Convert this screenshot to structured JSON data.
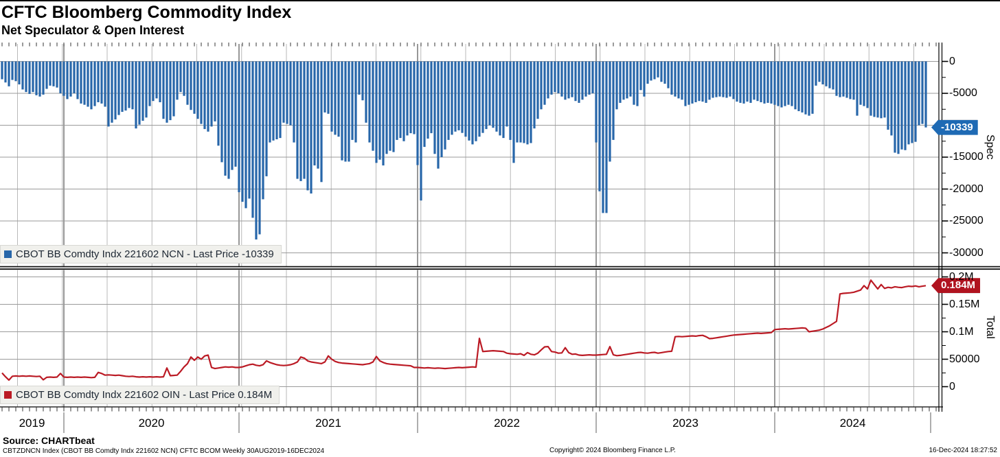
{
  "header": {
    "title": "CFTC Bloomberg Commodity Index",
    "subtitle": "Net Speculator & Open Interest"
  },
  "colors": {
    "bar": "#2766a9",
    "bar_badge": "#1e6ab4",
    "line": "#bb1a24",
    "line_badge": "#b0131f",
    "grid_h": "#9a9a9a",
    "grid_quarter": "#b8b8b8",
    "grid_year": "#6b6b6b",
    "axis": "#000000",
    "legend_bg": "#f0f0ec"
  },
  "top_panel": {
    "axis_label": "Spec",
    "badge": "-10339",
    "legend": "CBOT BB Comdty Indx 221602 NCN - Last Price -10339"
  },
  "bottom_panel": {
    "axis_label": "Total",
    "badge": "0.184M",
    "legend": "CBOT BB Comdty Indx 221602 OIN - Last Price 0.184M"
  },
  "x_axis": {
    "frequency": "Weekly",
    "start": "30AUG2019",
    "end": "16DEC2024",
    "years": [
      "2019",
      "2020",
      "2021",
      "2022",
      "2023",
      "2024"
    ],
    "year_divider_weeks": [
      18,
      69,
      121,
      173,
      225
    ]
  },
  "footer": {
    "source": "Source: CHARTbeat",
    "detail": "CBTZDNCN Index (CBOT BB Comdty Indx 221602 NCN) CFTC BCOM  Weekly 30AUG2019-16DEC2024",
    "copyright": "Copyright© 2024 Bloomberg Finance L.P.",
    "timestamp": "16-Dec-2024 18:27:52"
  },
  "chart_data": [
    {
      "type": "bar",
      "series_name": "CBOT BB Comdty Indx 221602 NCN",
      "panel": "Spec",
      "last_price": -10339,
      "ylim": [
        -30000,
        0
      ],
      "y_ticks": [
        {
          "label": "0",
          "v": 0
        },
        {
          "label": "-5000",
          "v": -5000
        },
        {
          "label": "-15000",
          "v": -15000
        },
        {
          "label": "-20000",
          "v": -20000
        },
        {
          "label": "-25000",
          "v": -25000
        },
        {
          "label": "-30000",
          "v": -30000
        }
      ],
      "values": [
        -2800,
        -3300,
        -3900,
        -2900,
        -3100,
        -3600,
        -4400,
        -4800,
        -5100,
        -4800,
        -5300,
        -5500,
        -5200,
        -4300,
        -3800,
        -3900,
        -4100,
        -5000,
        -5400,
        -5900,
        -5500,
        -5000,
        -5900,
        -6600,
        -6800,
        -7100,
        -7500,
        -7000,
        -6400,
        -6600,
        -7100,
        -10200,
        -9600,
        -9100,
        -8400,
        -7900,
        -7700,
        -7300,
        -7500,
        -10500,
        -9900,
        -9300,
        -8800,
        -7000,
        -6200,
        -5800,
        -6400,
        -9000,
        -9600,
        -9200,
        -8600,
        -6000,
        -4800,
        -5400,
        -6800,
        -7600,
        -8200,
        -9000,
        -9800,
        -10600,
        -11000,
        -10200,
        -9400,
        -13200,
        -15800,
        -17900,
        -18400,
        -17000,
        -16500,
        -20500,
        -22000,
        -23000,
        -21500,
        -24500,
        -27900,
        -27100,
        -21600,
        -18000,
        -12700,
        -12400,
        -12200,
        -12000,
        -9600,
        -9800,
        -10000,
        -12700,
        -18400,
        -18750,
        -18400,
        -20200,
        -20700,
        -16300,
        -16800,
        -18900,
        -8000,
        -8200,
        -11000,
        -11500,
        -11800,
        -15500,
        -15700,
        -15700,
        -12300,
        -12700,
        -5200,
        -6100,
        -9600,
        -12700,
        -14000,
        -15900,
        -15400,
        -16300,
        -14500,
        -14000,
        -14200,
        -12300,
        -12000,
        -12500,
        -11600,
        -11250,
        -11400,
        -16250,
        -21800,
        -13400,
        -12100,
        -11250,
        -14500,
        -16800,
        -15000,
        -13800,
        -12300,
        -11500,
        -11000,
        -10800,
        -11200,
        -11800,
        -12400,
        -13000,
        -12500,
        -11800,
        -11200,
        -10600,
        -10000,
        -10400,
        -11000,
        -11600,
        -12000,
        -10200,
        -12300,
        -15900,
        -12700,
        -12700,
        -12800,
        -13000,
        -12800,
        -10500,
        -9000,
        -7500,
        -6800,
        -5800,
        -5200,
        -4800,
        -5000,
        -5500,
        -6000,
        -5800,
        -5600,
        -6200,
        -6500,
        -6000,
        -5500,
        -5200,
        -5000,
        -12700,
        -20350,
        -23750,
        -23750,
        -15700,
        -12300,
        -7500,
        -6500,
        -6000,
        -5800,
        -5500,
        -6800,
        -7000,
        -4500,
        -5500,
        -3500,
        -3000,
        -2800,
        -2500,
        -3200,
        -3500,
        -4200,
        -5200,
        -5500,
        -5800,
        -6000,
        -7000,
        -6800,
        -6600,
        -6400,
        -6200,
        -6300,
        -6500,
        -6000,
        -5700,
        -5600,
        -5500,
        -5600,
        -5700,
        -5500,
        -5900,
        -6300,
        -6500,
        -6600,
        -6300,
        -6500,
        -6000,
        -6200,
        -6400,
        -6600,
        -6500,
        -6600,
        -6800,
        -7000,
        -7200,
        -7000,
        -6800,
        -7000,
        -7500,
        -7800,
        -8000,
        -8300,
        -8500,
        -8200,
        -3800,
        -3200,
        -3600,
        -3900,
        -4200,
        -4400,
        -5400,
        -5600,
        -5500,
        -5700,
        -5900,
        -6000,
        -8500,
        -6800,
        -7000,
        -7300,
        -8500,
        -8700,
        -8800,
        -8900,
        -8800,
        -10700,
        -11600,
        -14300,
        -14500,
        -13800,
        -13900,
        -13000,
        -12800,
        -12600,
        -10000,
        -9800,
        -10339
      ]
    },
    {
      "type": "line",
      "series_name": "CBOT BB Comdty Indx 221602 OIN",
      "panel": "Total",
      "last_price": 184000,
      "last_price_label": "0.184M",
      "ylim": [
        0,
        200000
      ],
      "y_ticks": [
        {
          "label": "0.2M",
          "v": 200000
        },
        {
          "label": "0.15M",
          "v": 150000
        },
        {
          "label": "0.1M",
          "v": 100000
        },
        {
          "label": "50000",
          "v": 50000
        },
        {
          "label": "0",
          "v": 0
        }
      ],
      "values": [
        25000,
        18000,
        12000,
        19000,
        19500,
        19000,
        19500,
        19000,
        19500,
        19000,
        18500,
        19000,
        12500,
        17000,
        17500,
        17000,
        17500,
        24000,
        17500,
        17000,
        17500,
        17000,
        17500,
        17000,
        17500,
        17000,
        16500,
        17000,
        26000,
        24000,
        21000,
        21500,
        21000,
        20500,
        21000,
        20000,
        19000,
        18500,
        19000,
        18000,
        17500,
        18000,
        17500,
        18000,
        17500,
        18000,
        17500,
        18000,
        34000,
        20000,
        20500,
        21000,
        28000,
        36000,
        42000,
        54000,
        48000,
        54000,
        50000,
        56000,
        57500,
        35000,
        33000,
        34000,
        35000,
        36000,
        35500,
        36000,
        35000,
        35000,
        36000,
        38000,
        40000,
        41000,
        39000,
        38000,
        40000,
        47000,
        44000,
        42000,
        40000,
        39000,
        38500,
        39000,
        40000,
        42000,
        45000,
        54000,
        52000,
        47000,
        45000,
        44000,
        43000,
        42000,
        45000,
        56000,
        50000,
        46000,
        44000,
        43000,
        42500,
        42000,
        41500,
        41000,
        40500,
        40000,
        41000,
        42000,
        45000,
        55000,
        47000,
        44000,
        42000,
        41000,
        40500,
        40000,
        39500,
        39000,
        38500,
        38000,
        35000,
        35000,
        34500,
        34000,
        34500,
        34000,
        33500,
        34000,
        33500,
        33000,
        33500,
        34000,
        34500,
        35000,
        34500,
        35000,
        35500,
        36000,
        35500,
        88000,
        64000,
        64500,
        65000,
        65500,
        65000,
        64500,
        64000,
        61000,
        60000,
        59500,
        59000,
        60000,
        57000,
        62000,
        59000,
        58000,
        61000,
        67000,
        72500,
        73000,
        64000,
        63000,
        61000,
        61500,
        71000,
        62000,
        59000,
        59500,
        57500,
        57000,
        57500,
        58000,
        57500,
        57500,
        58000,
        58500,
        59000,
        73000,
        58000,
        56500,
        57000,
        58000,
        59000,
        60000,
        61000,
        62000,
        62500,
        61500,
        61000,
        62000,
        62500,
        61000,
        62000,
        63000,
        64000,
        64500,
        91000,
        91500,
        91000,
        91500,
        92000,
        92500,
        92000,
        93000,
        93500,
        91000,
        87500,
        88000,
        89000,
        90000,
        91000,
        92000,
        93000,
        94000,
        94500,
        95000,
        95500,
        96000,
        96500,
        97000,
        97500,
        97000,
        97500,
        98000,
        98500,
        104000,
        104500,
        105000,
        105500,
        105000,
        105500,
        106000,
        106500,
        107000,
        106500,
        100000,
        101000,
        102000,
        103000,
        105000,
        108000,
        111000,
        115000,
        119000,
        169000,
        170000,
        170500,
        171000,
        172000,
        174000,
        176000,
        184000,
        178000,
        194000,
        186000,
        178000,
        186000,
        179000,
        181000,
        180000,
        182000,
        181000,
        180500,
        182000,
        183000,
        182500,
        183500,
        182000,
        183000,
        184000
      ]
    }
  ]
}
